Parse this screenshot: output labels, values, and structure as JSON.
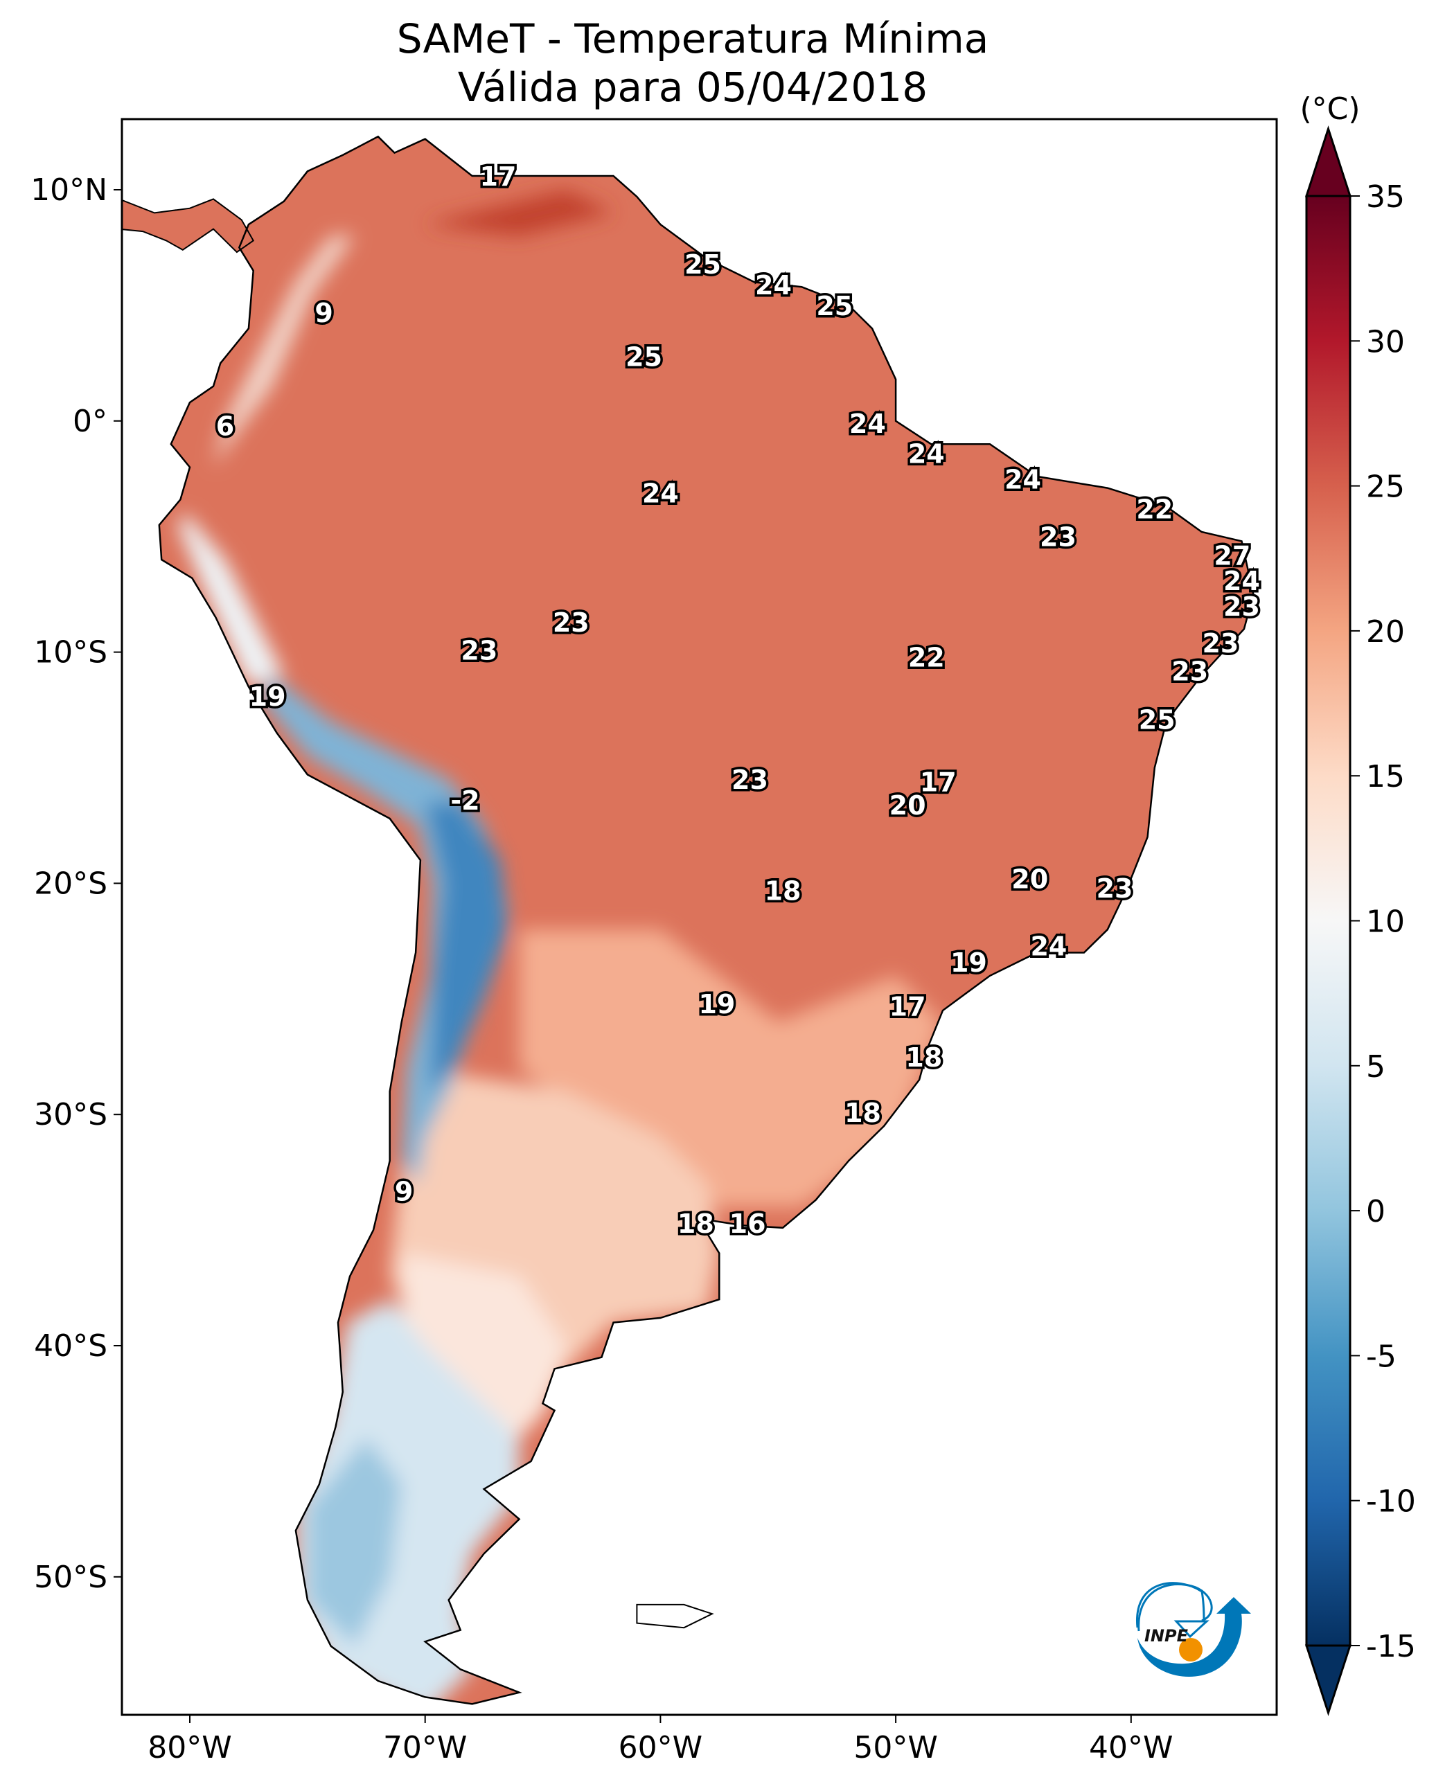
{
  "title": "SAMeT - Temperatura Mínima",
  "subtitle": "Válida para 05/04/2018",
  "colorbar": {
    "unit": "(°C)",
    "range": [
      -15,
      35
    ],
    "ticks": [
      "35",
      "30",
      "25",
      "20",
      "15",
      "10",
      "5",
      "0",
      "-5",
      "-10",
      "-15"
    ],
    "tick_values": [
      35,
      30,
      25,
      20,
      15,
      10,
      5,
      0,
      -5,
      -10,
      -15
    ],
    "colormap": "RdBu_r",
    "extend": "both",
    "colors": [
      "#053061",
      "#2166ac",
      "#4393c3",
      "#92c5de",
      "#d1e5f0",
      "#f7f7f7",
      "#fddbc7",
      "#f4a582",
      "#d6604d",
      "#b2182b",
      "#67001f"
    ]
  },
  "axes": {
    "lat_ticks": [
      {
        "v": 10,
        "label": "10°N"
      },
      {
        "v": 0,
        "label": "0°"
      },
      {
        "v": -10,
        "label": "10°S"
      },
      {
        "v": -20,
        "label": "20°S"
      },
      {
        "v": -30,
        "label": "30°S"
      },
      {
        "v": -40,
        "label": "40°S"
      },
      {
        "v": -50,
        "label": "50°S"
      }
    ],
    "lon_ticks": [
      {
        "v": -80,
        "label": "80°W"
      },
      {
        "v": -70,
        "label": "70°W"
      },
      {
        "v": -60,
        "label": "60°W"
      },
      {
        "v": -50,
        "label": "50°W"
      },
      {
        "v": -40,
        "label": "40°W"
      }
    ],
    "lon_range": [
      -82.9,
      -33.8
    ],
    "lat_range": [
      -56,
      13.05
    ]
  },
  "station_labels": [
    {
      "t": "17",
      "lon": -66.9,
      "lat": 10.6
    },
    {
      "t": "25",
      "lon": -58.2,
      "lat": 6.8
    },
    {
      "t": "24",
      "lon": -55.2,
      "lat": 5.9
    },
    {
      "t": "25",
      "lon": -52.6,
      "lat": 5.0
    },
    {
      "t": "9",
      "lon": -74.3,
      "lat": 4.7
    },
    {
      "t": "25",
      "lon": -60.7,
      "lat": 2.8
    },
    {
      "t": "6",
      "lon": -78.5,
      "lat": -0.2
    },
    {
      "t": "24",
      "lon": -51.2,
      "lat": -0.1
    },
    {
      "t": "24",
      "lon": -48.7,
      "lat": -1.4
    },
    {
      "t": "24",
      "lon": -44.6,
      "lat": -2.5
    },
    {
      "t": "24",
      "lon": -60.0,
      "lat": -3.1
    },
    {
      "t": "22",
      "lon": -39.0,
      "lat": -3.8
    },
    {
      "t": "23",
      "lon": -43.1,
      "lat": -5.0
    },
    {
      "t": "27",
      "lon": -35.7,
      "lat": -5.8
    },
    {
      "t": "24",
      "lon": -35.3,
      "lat": -6.9
    },
    {
      "t": "23",
      "lon": -35.3,
      "lat": -8.0
    },
    {
      "t": "23",
      "lon": -63.8,
      "lat": -8.7
    },
    {
      "t": "23",
      "lon": -67.7,
      "lat": -9.9
    },
    {
      "t": "23",
      "lon": -36.2,
      "lat": -9.6
    },
    {
      "t": "22",
      "lon": -48.7,
      "lat": -10.2
    },
    {
      "t": "23",
      "lon": -37.5,
      "lat": -10.8
    },
    {
      "t": "19",
      "lon": -76.7,
      "lat": -11.9
    },
    {
      "t": "25",
      "lon": -38.9,
      "lat": -12.9
    },
    {
      "t": "23",
      "lon": -56.2,
      "lat": -15.5
    },
    {
      "t": "17",
      "lon": -48.2,
      "lat": -15.6
    },
    {
      "t": "20",
      "lon": -49.5,
      "lat": -16.6
    },
    {
      "t": "-2",
      "lon": -68.3,
      "lat": -16.4
    },
    {
      "t": "18",
      "lon": -54.8,
      "lat": -20.3
    },
    {
      "t": "20",
      "lon": -44.3,
      "lat": -19.8
    },
    {
      "t": "23",
      "lon": -40.7,
      "lat": -20.2
    },
    {
      "t": "24",
      "lon": -43.5,
      "lat": -22.7
    },
    {
      "t": "19",
      "lon": -46.9,
      "lat": -23.4
    },
    {
      "t": "19",
      "lon": -57.6,
      "lat": -25.2
    },
    {
      "t": "17",
      "lon": -49.5,
      "lat": -25.3
    },
    {
      "t": "18",
      "lon": -48.8,
      "lat": -27.5
    },
    {
      "t": "18",
      "lon": -51.4,
      "lat": -29.9
    },
    {
      "t": "9",
      "lon": -70.9,
      "lat": -33.3
    },
    {
      "t": "18",
      "lon": -58.5,
      "lat": -34.7
    },
    {
      "t": "16",
      "lon": -56.3,
      "lat": -34.7
    }
  ],
  "logo": {
    "text": "INPE",
    "blue": "#0077b8",
    "orange": "#f29100"
  }
}
